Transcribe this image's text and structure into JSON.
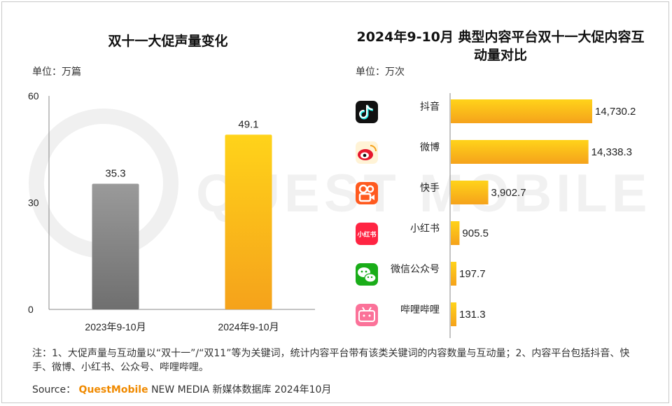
{
  "left_chart": {
    "title": "双十一大促声量变化",
    "unit": "单位：万篇"
  },
  "right_chart": {
    "title": "2024年9-10月 典型内容平台双十一大促内容互动量对比",
    "unit": "单位：万次"
  },
  "watermark": "QUEST MOBILE",
  "note": "注：1、大促声量与互动量以“双十一”/“双11”等为关键词，统计内容平台带有该类关键词的内容数量与互动量；2、内容平台包括抖音、快手、微博、小红书、公众号、哔哩哔哩。",
  "source": {
    "label": "Source：",
    "brand": "QuestMobile",
    "rest": "NEW MEDIA 新媒体数据库 2024年10月"
  },
  "colors": {
    "gray_bar_top": "#9a9a9a",
    "gray_bar_bottom": "#6f6f6f",
    "gold_bar_top": "#ffd31a",
    "gold_bar_bottom": "#f5a21b",
    "brand": "#f08a00"
  },
  "chart_data": [
    {
      "type": "bar",
      "title": "双十一大促声量变化",
      "ylabel": "单位：万篇",
      "categories": [
        "2023年9-10月",
        "2024年9-10月"
      ],
      "values": [
        35.3,
        49.1
      ],
      "value_labels": [
        "35.3",
        "49.1"
      ],
      "ylim": [
        0,
        60
      ],
      "yticks": [
        "0",
        "30",
        "60"
      ],
      "grid": false,
      "legend": "none"
    },
    {
      "type": "bar",
      "orientation": "horizontal",
      "title": "2024年9-10月 典型内容平台双十一大促内容互动量对比",
      "xlabel": "单位：万次",
      "categories": [
        "抖音",
        "微博",
        "快手",
        "小红书",
        "微信公众号",
        "哔哩哔哩"
      ],
      "icons": [
        "douyin-icon",
        "weibo-icon",
        "kuaishou-icon",
        "xiaohongshu-icon",
        "wechat-icon",
        "bilibili-icon"
      ],
      "values": [
        14730.2,
        14338.3,
        3902.7,
        905.5,
        197.7,
        131.3
      ],
      "value_labels": [
        "14,730.2",
        "14,338.3",
        "3,902.7",
        "905.5",
        "197.7",
        "131.3"
      ],
      "grid": false,
      "legend": "none"
    }
  ]
}
